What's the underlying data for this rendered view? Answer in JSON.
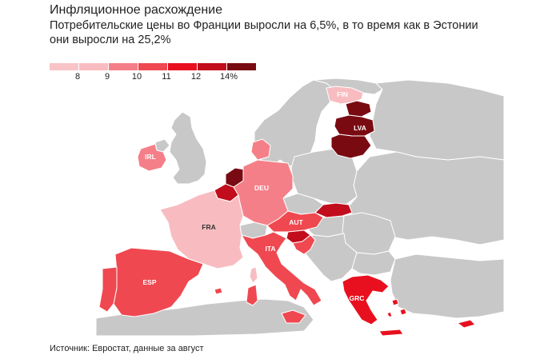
{
  "title": "Инфляционное расхождение",
  "subtitle": "Потребительские цены во Франции выросли на 6,5%, в то время как в Эстонии они выросли на 25,2%",
  "source": "Источник: Евростат, данные за август",
  "legend": {
    "labels": [
      "8",
      "9",
      "10",
      "11",
      "12",
      "14%"
    ],
    "colors": [
      "#f8bcc0",
      "#f57f88",
      "#ef4850",
      "#e8101f",
      "#c20d1c",
      "#7a0a12"
    ]
  },
  "colors": {
    "background": "#ffffff",
    "land_no_data": "#c8c8c8",
    "border": "#ffffff"
  },
  "countries": [
    {
      "code": "FIN",
      "label": "FIN"
    },
    {
      "code": "LVA",
      "label": "LVA"
    },
    {
      "code": "IRL",
      "label": "IRL"
    },
    {
      "code": "DEU",
      "label": "DEU"
    },
    {
      "code": "FRA",
      "label": "FRA"
    },
    {
      "code": "AUT",
      "label": "AUT"
    },
    {
      "code": "ITA",
      "label": "ITA"
    },
    {
      "code": "ESP",
      "label": "ESP"
    },
    {
      "code": "GRC",
      "label": "GRC"
    }
  ]
}
